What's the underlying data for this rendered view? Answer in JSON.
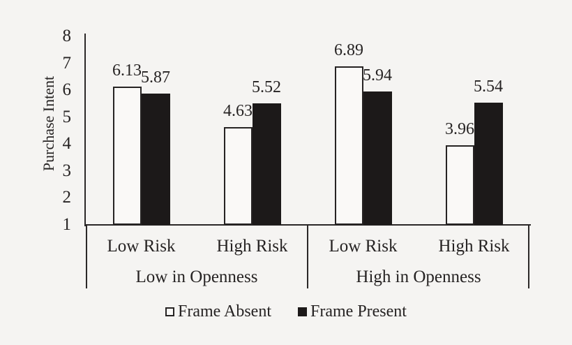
{
  "background_color": "#f5f4f2",
  "ink_color": "#2b2828",
  "bar_fill_absent": "#faf9f7",
  "bar_fill_present": "#1c1919",
  "chart_data": {
    "type": "bar",
    "title": "",
    "xlabel": "",
    "ylabel": "Purchase Intent",
    "ylim": [
      1,
      8
    ],
    "yticks": [
      1,
      2,
      3,
      4,
      5,
      6,
      7,
      8
    ],
    "grid": false,
    "legend_position": "bottom",
    "group_labels": [
      "Low in Openness",
      "High in Openness"
    ],
    "categories": [
      "Low Risk",
      "High Risk",
      "Low Risk",
      "High Risk"
    ],
    "series": [
      {
        "name": "Frame Absent",
        "fill": "white",
        "values": [
          6.13,
          4.63,
          6.89,
          3.96
        ]
      },
      {
        "name": "Frame Present",
        "fill": "black",
        "values": [
          5.87,
          5.52,
          5.94,
          5.54
        ]
      }
    ],
    "value_labels": [
      [
        "6.13",
        "4.63",
        "6.89",
        "3.96"
      ],
      [
        "5.87",
        "5.52",
        "5.94",
        "5.54"
      ]
    ]
  }
}
